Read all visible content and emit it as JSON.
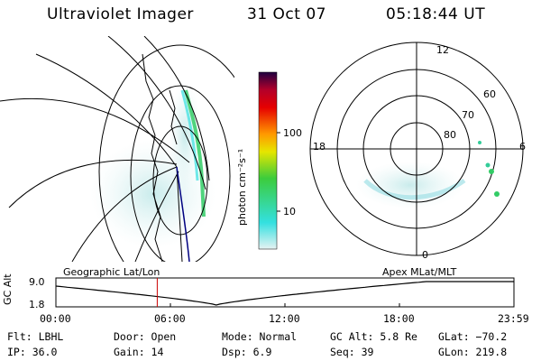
{
  "header": {
    "title": "Ultraviolet Imager",
    "date": "31 Oct 07",
    "time": "05:18:44 UT"
  },
  "colorbar": {
    "unit_label": "photon cm⁻²s⁻¹",
    "ticks": [
      "100",
      "10"
    ]
  },
  "polar": {
    "mlt_labels": {
      "top": "12",
      "left": "18",
      "right": "6",
      "bottom": "0"
    },
    "lat_labels": [
      "60",
      "70",
      "80"
    ]
  },
  "panels": {
    "geo_label": "Geographic Lat/Lon",
    "apex_label": "Apex  MLat/MLT"
  },
  "altitude_plot": {
    "ylabel": "GC Alt",
    "y_ticks": [
      "9.0",
      "1.8"
    ],
    "x_ticks": [
      "00:00",
      "06:00",
      "12:00",
      "18:00",
      "23:59"
    ],
    "current_time_marker_hours": 5.31
  },
  "info": {
    "filter": "Flt: LBHL",
    "door": "Door: Open",
    "mode": "Mode: Normal",
    "gc_alt": "GC Alt: 5.8 Re",
    "glat": "GLat: −70.2",
    "ip": "IP: 36.0",
    "gain": "Gain: 14",
    "dsp": "Dsp:     6.9",
    "seq": "Seq: 39",
    "glon": "GLon: 219.8"
  },
  "colors": {
    "colorbar_stops": [
      "#e6f2f2",
      "#33e0e0",
      "#3ccc3c",
      "#e6e600",
      "#ff9900",
      "#e60000",
      "#b3002a",
      "#200040"
    ],
    "marker": "#cc0000",
    "track": "#000080"
  }
}
